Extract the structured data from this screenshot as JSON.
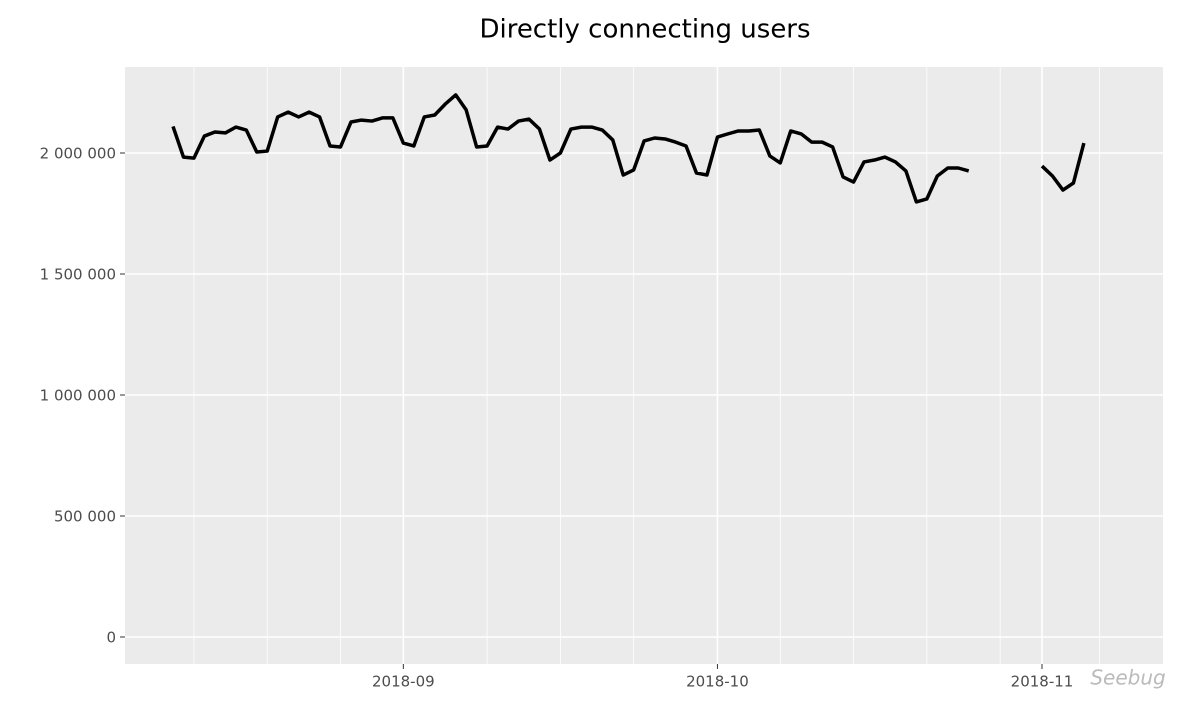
{
  "chart_data": {
    "type": "line",
    "title": "Directly connecting users",
    "categories": [
      null,
      null,
      null,
      null,
      null,
      null,
      null,
      null,
      null,
      null,
      null,
      null,
      null,
      null,
      null,
      null,
      null,
      null,
      null,
      null,
      null,
      null,
      "2018-09",
      null,
      null,
      null,
      null,
      null,
      null,
      null,
      null,
      null,
      null,
      null,
      null,
      null,
      null,
      null,
      null,
      null,
      null,
      null,
      null,
      null,
      null,
      null,
      null,
      null,
      null,
      null,
      null,
      null,
      "2018-10",
      null,
      null,
      null,
      null,
      null,
      null,
      null,
      null,
      null,
      null,
      null,
      null,
      null,
      null,
      null,
      null,
      null,
      null,
      null,
      null,
      null,
      null,
      null,
      null,
      null,
      null,
      null,
      null,
      null,
      null,
      "2018-11",
      null,
      null,
      null,
      null
    ],
    "values": [
      2110000,
      1983000,
      1979000,
      2070000,
      2087000,
      2083000,
      2107000,
      2095000,
      2004000,
      2008000,
      2149000,
      2169000,
      2149000,
      2169000,
      2149000,
      2029000,
      2025000,
      2128000,
      2136000,
      2132000,
      2145000,
      2145000,
      2041000,
      2029000,
      2149000,
      2157000,
      2202000,
      2240000,
      2178000,
      2025000,
      2029000,
      2107000,
      2099000,
      2132000,
      2140000,
      2099000,
      1971000,
      2000000,
      2099000,
      2107000,
      2107000,
      2095000,
      2054000,
      1909000,
      1930000,
      2050000,
      2062000,
      2058000,
      2045000,
      2029000,
      1917000,
      1909000,
      2066000,
      2079000,
      2091000,
      2091000,
      2095000,
      1988000,
      1959000,
      2091000,
      2079000,
      2045000,
      2045000,
      2025000,
      1901000,
      1880000,
      1963000,
      1971000,
      1983000,
      1963000,
      1926000,
      1798000,
      1810000,
      1905000,
      1938000,
      1938000,
      1926000,
      null,
      null,
      null,
      null,
      null,
      null,
      1946000,
      1905000,
      1847000,
      1876000,
      2041000
    ],
    "color": "#000000",
    "ylim": [
      -111570,
      2355372
    ],
    "yticks": [
      {
        "value": 0,
        "label": "0"
      },
      {
        "value": 500000,
        "label": "500 000"
      },
      {
        "value": 1000000,
        "label": "1 000 000"
      },
      {
        "value": 1500000,
        "label": "1 500 000"
      },
      {
        "value": 2000000,
        "label": "2 000 000"
      }
    ],
    "grid": true,
    "watermark": "Seebug"
  }
}
